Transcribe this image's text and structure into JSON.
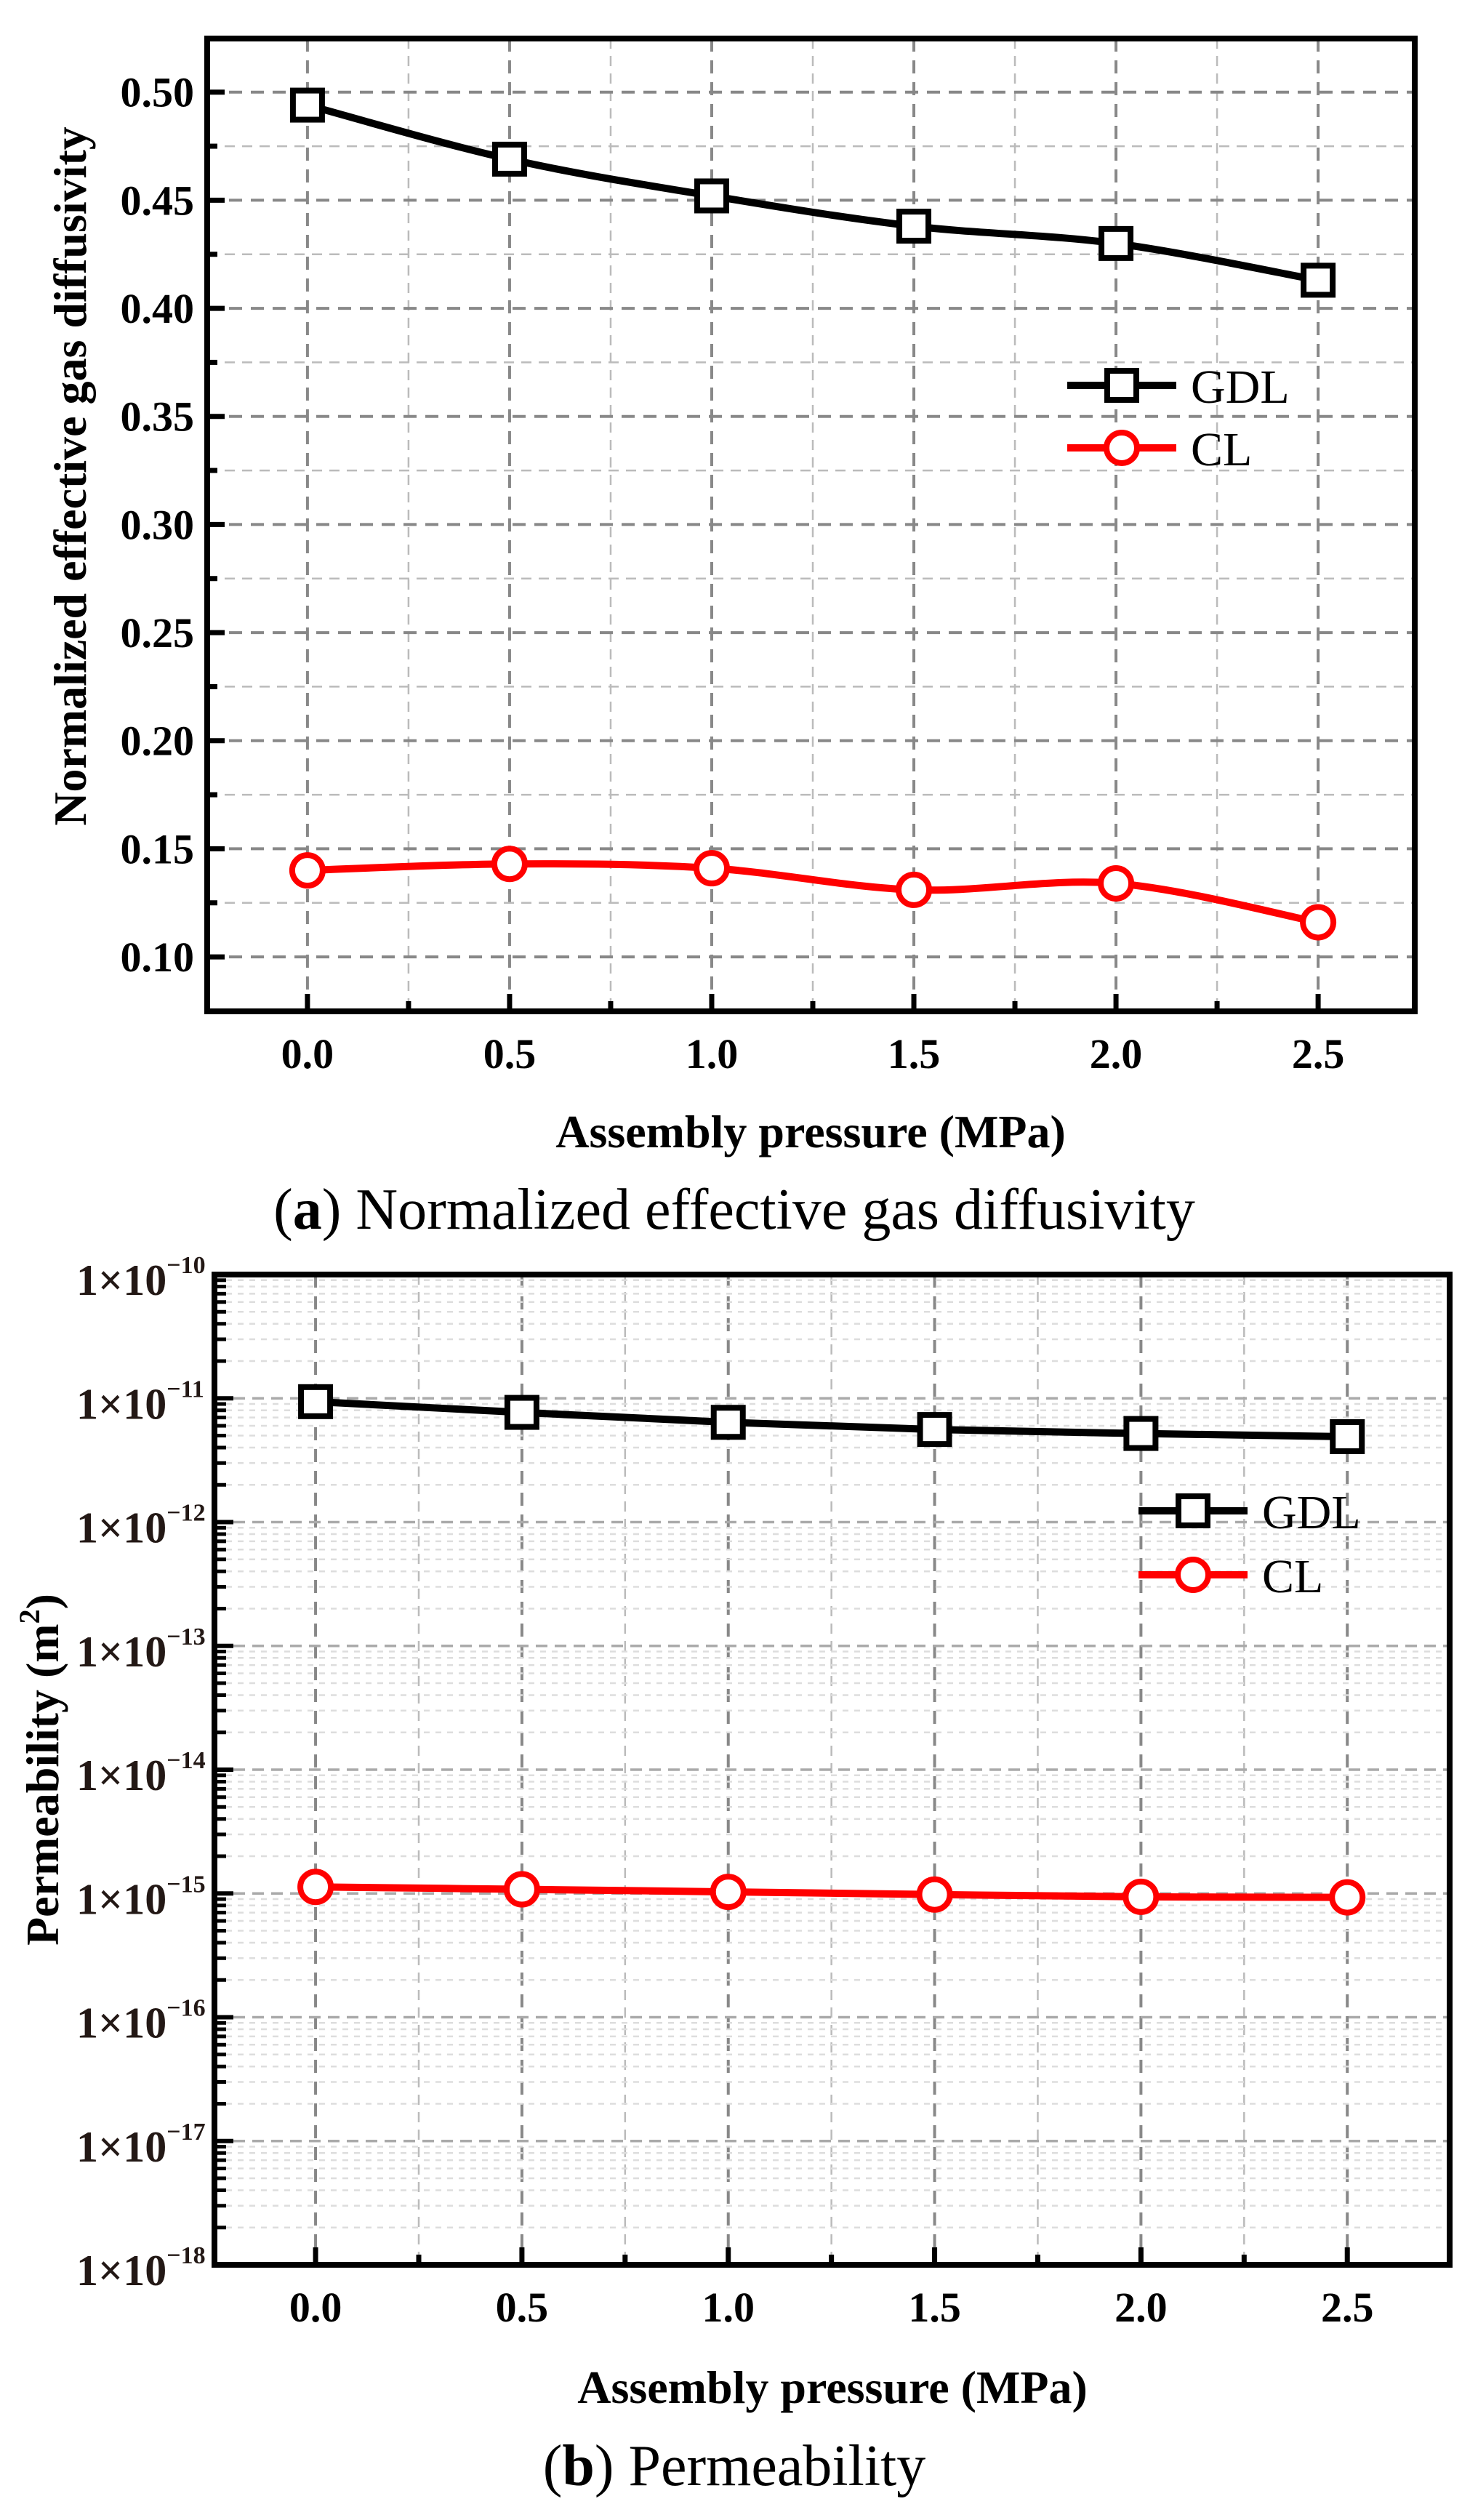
{
  "chart_data": [
    {
      "type": "line",
      "caption_letter": "a",
      "caption_text": "Normalized effective gas diffusivity",
      "xlabel": "Assembly pressure (MPa)",
      "ylabel": "Normalized effective gas diffusivity",
      "x": [
        0.0,
        0.5,
        1.0,
        1.5,
        2.0,
        2.5
      ],
      "xticks": [
        "0.0",
        "0.5",
        "1.0",
        "1.5",
        "2.0",
        "2.5"
      ],
      "yticks": [
        "0.10",
        "0.15",
        "0.20",
        "0.25",
        "0.30",
        "0.35",
        "0.40",
        "0.45",
        "0.50"
      ],
      "xlim": [
        -0.248,
        2.739
      ],
      "ylim": [
        0.0748,
        0.5248
      ],
      "yscale": "linear",
      "grid": true,
      "legend_position": "upper-right",
      "series": [
        {
          "name": "GDL",
          "color": "#000000",
          "marker": "square",
          "values": [
            0.494,
            0.469,
            0.452,
            0.438,
            0.43,
            0.413
          ]
        },
        {
          "name": "CL",
          "color": "#ff0000",
          "marker": "circle",
          "values": [
            0.14,
            0.143,
            0.141,
            0.131,
            0.134,
            0.116
          ]
        }
      ]
    },
    {
      "type": "line",
      "caption_letter": "b",
      "caption_text": "Permeability",
      "xlabel": "Assembly pressure (MPa)",
      "ylabel": "Permeability (m",
      "ylabel_sup": "2",
      "ylabel_end": ")",
      "x": [
        0.0,
        0.5,
        1.0,
        1.5,
        2.0,
        2.5
      ],
      "xticks": [
        "0.0",
        "0.5",
        "1.0",
        "1.5",
        "2.0",
        "2.5"
      ],
      "ytick_base": "1×10",
      "ytick_exponents": [
        "−18",
        "−17",
        "−16",
        "−15",
        "−14",
        "−13",
        "−12",
        "−11",
        "−10"
      ],
      "xlim": [
        -0.245,
        2.748
      ],
      "ylim": [
        1e-18,
        1e-10
      ],
      "yscale": "log",
      "grid": true,
      "legend_position": "upper-right",
      "series": [
        {
          "name": "GDL",
          "color": "#000000",
          "marker": "square",
          "values": [
            9.4e-12,
            7.7e-12,
            6.4e-12,
            5.6e-12,
            5.2e-12,
            4.9e-12
          ]
        },
        {
          "name": "CL",
          "color": "#ff0000",
          "marker": "circle",
          "values": [
            1.13e-15,
            1.08e-15,
            1.03e-15,
            9.8e-16,
            9.4e-16,
            9.3e-16
          ]
        }
      ]
    }
  ]
}
